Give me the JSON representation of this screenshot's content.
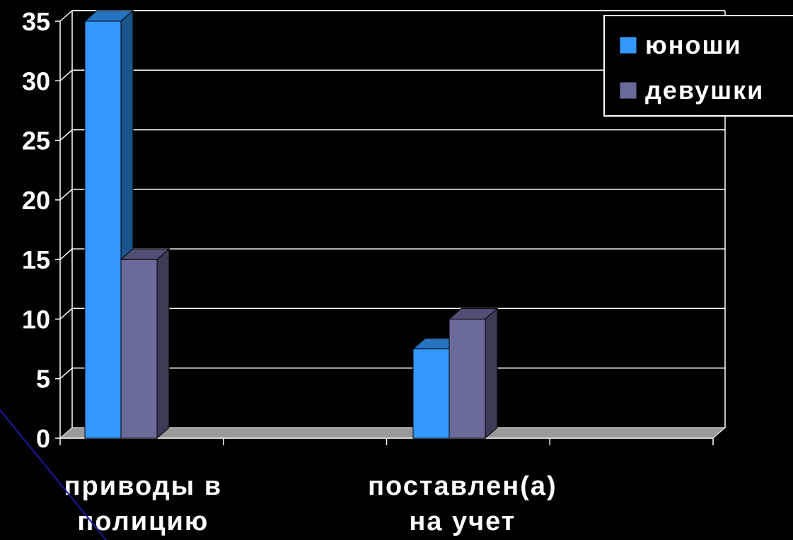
{
  "chart_data": {
    "type": "bar",
    "title": "",
    "xlabel": "",
    "ylabel": "",
    "ylim": [
      0,
      35
    ],
    "yticks": [
      0,
      5,
      10,
      15,
      20,
      25,
      30,
      35
    ],
    "grid": true,
    "legend_position": "top-right",
    "categories": [
      [
        "приводы в",
        "полицию"
      ],
      [
        "поставлен(а)",
        "на учет"
      ]
    ],
    "series": [
      {
        "name": "юноши",
        "values": [
          35,
          7.5
        ],
        "color": "#3399ff"
      },
      {
        "name": "девушки",
        "values": [
          15,
          10
        ],
        "color": "#6b6b9b"
      }
    ]
  }
}
